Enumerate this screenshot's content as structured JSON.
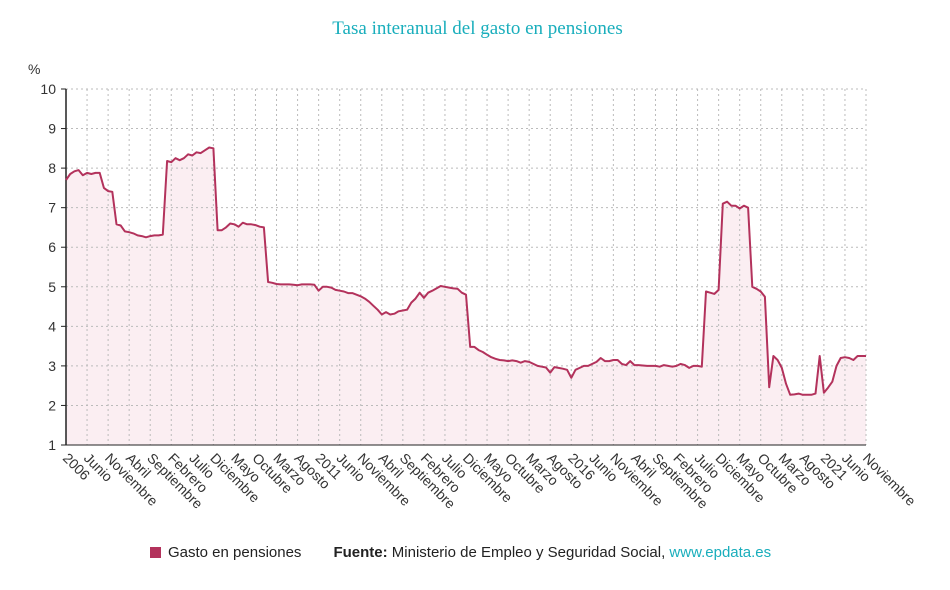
{
  "chart_data": {
    "type": "area",
    "title": "Tasa interanual del gasto en pensiones",
    "ylabel": "%",
    "ylim": [
      1,
      10
    ],
    "yticks": [
      1,
      2,
      3,
      4,
      5,
      6,
      7,
      8,
      9,
      10
    ],
    "grid": true,
    "x_start": "2006-01",
    "x_end": "2021-11",
    "x_frequency": "monthly",
    "xtick_labels": [
      "2006",
      "Junio",
      "Noviembre",
      "Abril",
      "Septiembre",
      "Febrero",
      "Julio",
      "Diciembre",
      "Mayo",
      "Octubre",
      "Marzo",
      "Agosto",
      "2011",
      "Junio",
      "Noviembre",
      "Abril",
      "Septiembre",
      "Febrero",
      "Julio",
      "Diciembre",
      "Mayo",
      "Octubre",
      "Marzo",
      "Agosto",
      "2016",
      "Junio",
      "Noviembre",
      "Abril",
      "Septiembre",
      "Febrero",
      "Julio",
      "Diciembre",
      "Mayo",
      "Octubre",
      "Marzo",
      "Agosto",
      "2021",
      "Junio",
      "Noviembre"
    ],
    "legend_placement": "bottom",
    "colors": {
      "line": "#b3325c",
      "fill": "#fbeef2",
      "title": "#19aebc"
    },
    "series": [
      {
        "name": "Gasto en pensiones",
        "values": [
          7.7,
          7.85,
          7.92,
          7.95,
          7.82,
          7.88,
          7.85,
          7.88,
          7.88,
          7.5,
          7.42,
          7.4,
          6.58,
          6.55,
          6.4,
          6.38,
          6.35,
          6.3,
          6.28,
          6.25,
          6.28,
          6.3,
          6.3,
          6.32,
          8.18,
          8.15,
          8.25,
          8.2,
          8.25,
          8.35,
          8.32,
          8.4,
          8.38,
          8.45,
          8.52,
          8.5,
          6.43,
          6.43,
          6.5,
          6.6,
          6.58,
          6.52,
          6.62,
          6.58,
          6.58,
          6.56,
          6.52,
          6.5,
          5.12,
          5.1,
          5.07,
          5.06,
          5.06,
          5.06,
          5.05,
          5.04,
          5.06,
          5.06,
          5.06,
          5.05,
          4.9,
          5.0,
          5.0,
          4.98,
          4.92,
          4.9,
          4.88,
          4.84,
          4.84,
          4.8,
          4.76,
          4.7,
          4.62,
          4.52,
          4.42,
          4.3,
          4.36,
          4.3,
          4.32,
          4.38,
          4.4,
          4.42,
          4.6,
          4.7,
          4.85,
          4.72,
          4.85,
          4.9,
          4.96,
          5.02,
          5.0,
          4.98,
          4.96,
          4.95,
          4.85,
          4.8,
          3.48,
          3.48,
          3.4,
          3.35,
          3.28,
          3.22,
          3.18,
          3.15,
          3.14,
          3.12,
          3.14,
          3.12,
          3.08,
          3.12,
          3.1,
          3.05,
          3.0,
          2.98,
          2.96,
          2.83,
          2.97,
          2.95,
          2.93,
          2.9,
          2.7,
          2.9,
          2.95,
          3.0,
          3.0,
          3.05,
          3.1,
          3.2,
          3.12,
          3.12,
          3.15,
          3.15,
          3.05,
          3.02,
          3.12,
          3.02,
          3.02,
          3.01,
          3.0,
          3.0,
          3.0,
          2.98,
          3.02,
          3.0,
          2.98,
          3.0,
          3.05,
          3.02,
          2.95,
          3.0,
          3.0,
          2.98,
          4.88,
          4.85,
          4.82,
          4.92,
          7.1,
          7.15,
          7.05,
          7.05,
          6.98,
          7.05,
          7.0,
          5.0,
          4.95,
          4.88,
          4.75,
          2.46,
          3.25,
          3.15,
          2.95,
          2.55,
          2.27,
          2.28,
          2.3,
          2.27,
          2.27,
          2.27,
          2.3,
          3.25,
          2.32,
          2.45,
          2.6,
          3.0,
          3.2,
          3.22,
          3.2,
          3.15,
          3.25,
          3.25,
          3.25
        ]
      }
    ]
  },
  "source": {
    "label": "Fuente:",
    "text": " Ministerio de Empleo y Seguridad Social, ",
    "link": "www.epdata.es"
  }
}
